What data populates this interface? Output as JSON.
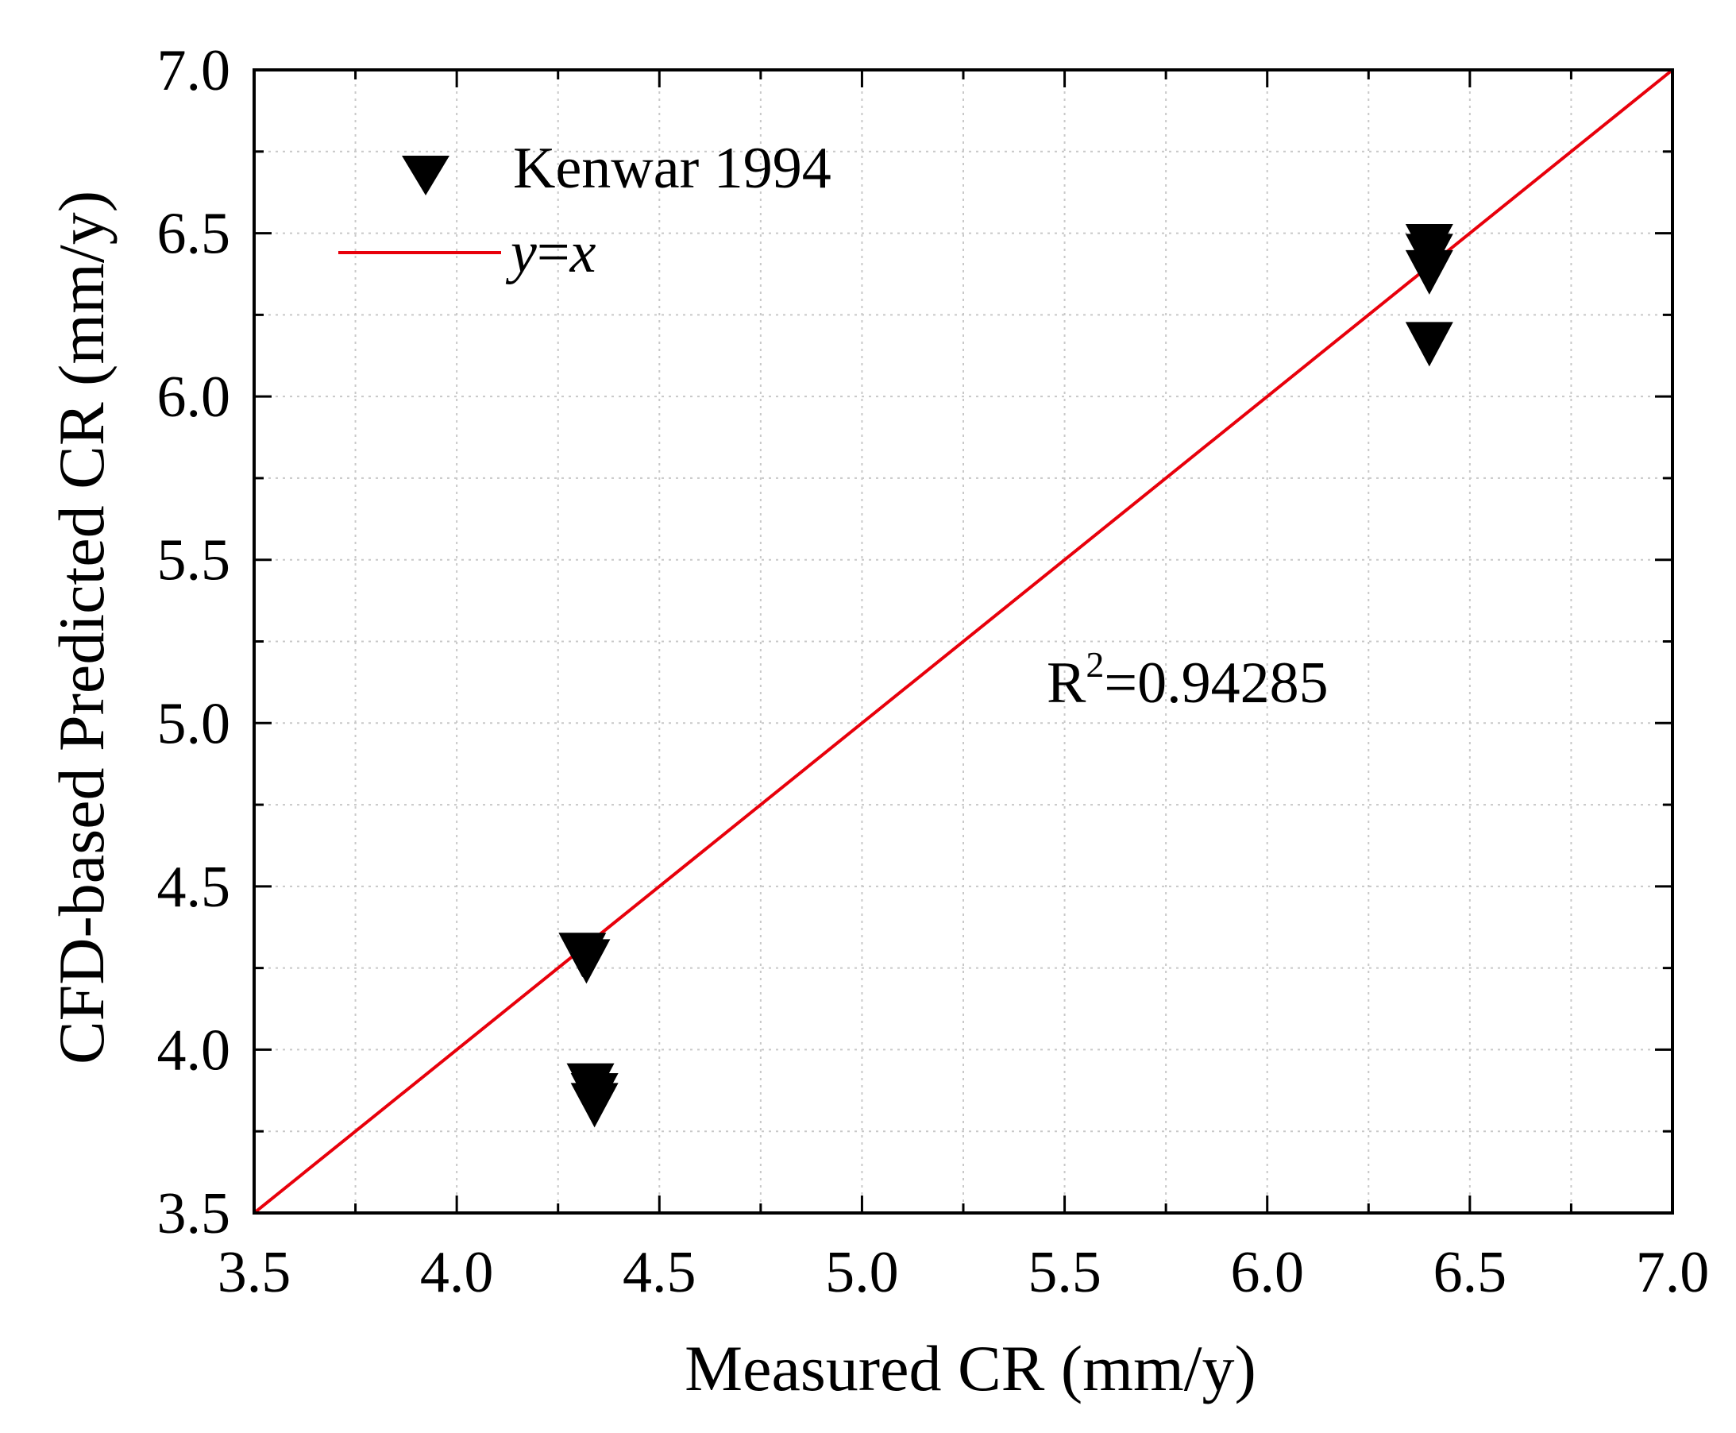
{
  "chart_data": {
    "type": "scatter",
    "title": "",
    "xlabel": "Measured CR (mm/y)",
    "ylabel": "CFD-based Predicted CR (mm/y)",
    "xlim": [
      3.5,
      7.0
    ],
    "ylim": [
      3.5,
      7.0
    ],
    "xticks": [
      "3.5",
      "4.0",
      "4.5",
      "5.0",
      "5.5",
      "6.0",
      "6.5",
      "7.0"
    ],
    "yticks": [
      "3.5",
      "4.0",
      "4.5",
      "5.0",
      "5.5",
      "6.0",
      "6.5",
      "7.0"
    ],
    "grid": true,
    "series": [
      {
        "name": "Kenwar 1994",
        "marker": "triangle-down",
        "color": "#000000",
        "points": [
          {
            "x": 4.31,
            "y": 4.29
          },
          {
            "x": 4.32,
            "y": 4.27
          },
          {
            "x": 4.33,
            "y": 3.89
          },
          {
            "x": 4.34,
            "y": 3.86
          },
          {
            "x": 4.34,
            "y": 3.83
          },
          {
            "x": 6.4,
            "y": 6.46
          },
          {
            "x": 6.4,
            "y": 6.43
          },
          {
            "x": 6.4,
            "y": 6.38
          },
          {
            "x": 6.4,
            "y": 6.16
          }
        ]
      },
      {
        "name": "y=x",
        "type": "line",
        "color": "#e8000b",
        "x": [
          3.5,
          7.0
        ],
        "y": [
          3.5,
          7.0
        ]
      }
    ],
    "legend": {
      "position": "top-left",
      "entries": [
        {
          "label": "Kenwar 1994",
          "marker": "triangle-down"
        },
        {
          "label_italic_1": "y",
          "label_op": "=",
          "label_italic_2": "x",
          "marker": "line"
        }
      ]
    },
    "annotation": {
      "prefix": "R",
      "superscript": "2",
      "suffix": "=0.94285"
    }
  }
}
